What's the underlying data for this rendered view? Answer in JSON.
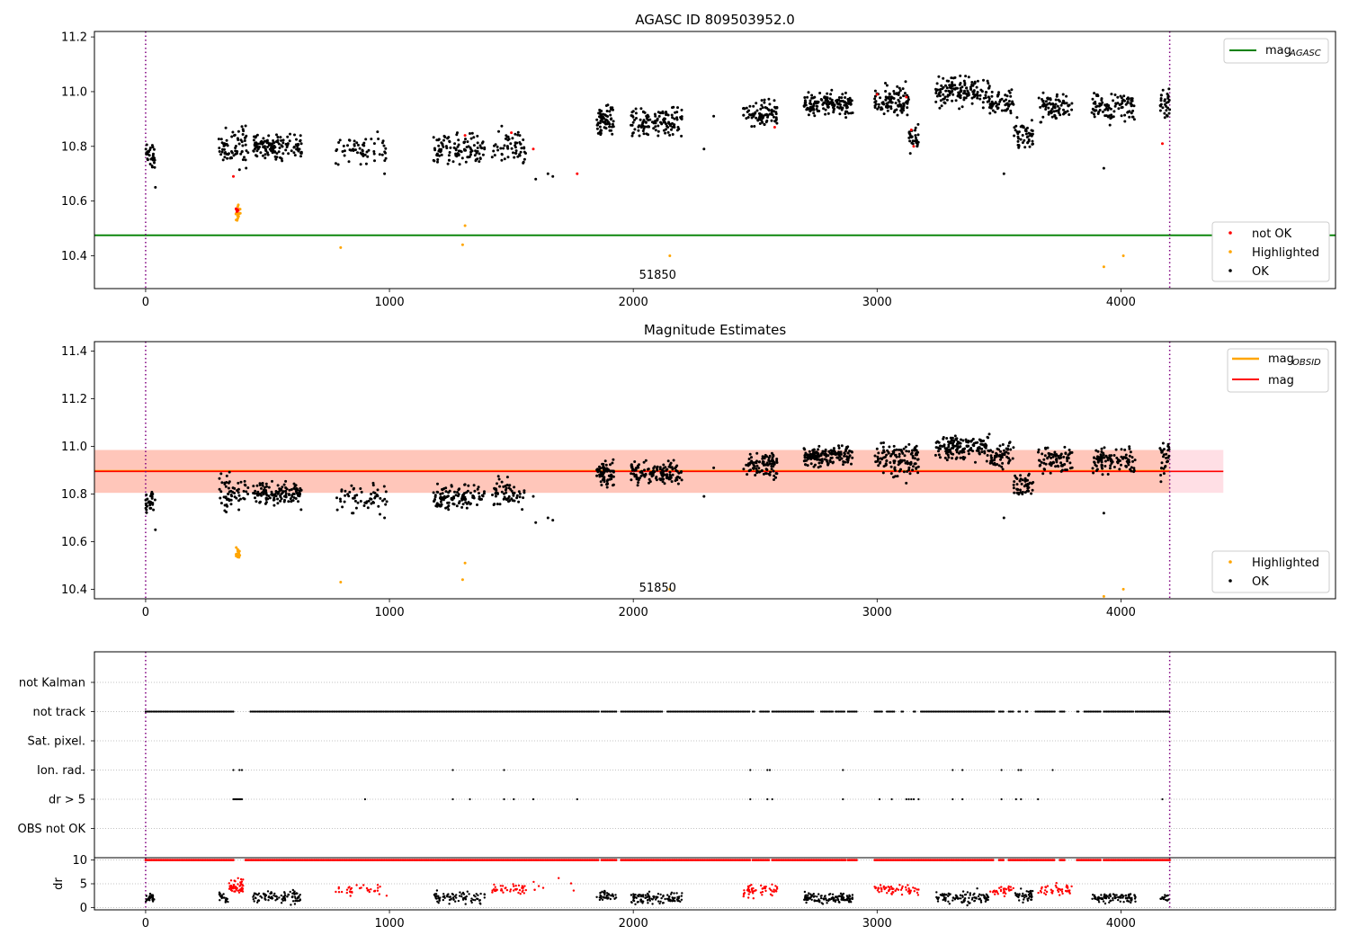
{
  "colors": {
    "ok": "#000000",
    "not_ok": "#ff0000",
    "highlighted": "#ffa500",
    "mag_agasc": "#008000",
    "mag_obsid": "#ffa500",
    "mag": "#ff0000",
    "vline": "#800080",
    "band_outer": "#ffc0cb",
    "band_inner": "#ffa07a",
    "grid": "#b0b0b0"
  },
  "chart_data": [
    {
      "type": "scatter",
      "title": "AGASC ID 809503952.0",
      "xlim": [
        -210,
        4880
      ],
      "ylim": [
        10.28,
        11.22
      ],
      "xticks": [
        0,
        1000,
        2000,
        3000,
        4000
      ],
      "yticks": [
        10.4,
        10.6,
        10.8,
        11.0,
        11.2
      ],
      "hlines": [
        {
          "name": "mag_AGASC",
          "y": 10.475,
          "color": "#008000"
        }
      ],
      "vlines": [
        0,
        4200
      ],
      "annotation": {
        "text": "51850",
        "x": 2100,
        "y": 10.33
      },
      "legend_lines": [
        {
          "label": "mag",
          "subscript": "AGASC",
          "color": "#008000"
        }
      ],
      "legend_points": [
        {
          "label": "not OK",
          "color": "#ff0000"
        },
        {
          "label": "Highlighted",
          "color": "#ffa500"
        },
        {
          "label": "OK",
          "color": "#000000"
        }
      ],
      "series": [
        {
          "name": "OK",
          "color": "#000000",
          "clusters": [
            [
              0,
              40,
              10.76,
              0.045,
              30
            ],
            [
              300,
              420,
              10.8,
              0.07,
              70
            ],
            [
              440,
              640,
              10.8,
              0.05,
              130
            ],
            [
              780,
              990,
              10.78,
              0.06,
              60
            ],
            [
              1180,
              1390,
              10.79,
              0.05,
              110
            ],
            [
              1420,
              1560,
              10.8,
              0.06,
              60
            ],
            [
              1850,
              1920,
              10.89,
              0.05,
              70
            ],
            [
              1990,
              2200,
              10.89,
              0.05,
              130
            ],
            [
              2450,
              2590,
              10.92,
              0.05,
              90
            ],
            [
              2700,
              2900,
              10.96,
              0.04,
              150
            ],
            [
              2990,
              3130,
              10.97,
              0.05,
              100
            ],
            [
              3130,
              3170,
              10.83,
              0.05,
              30
            ],
            [
              3240,
              3460,
              11.0,
              0.05,
              150
            ],
            [
              3460,
              3560,
              10.96,
              0.05,
              60
            ],
            [
              3560,
              3640,
              10.84,
              0.05,
              50
            ],
            [
              3660,
              3800,
              10.94,
              0.05,
              80
            ],
            [
              3880,
              4060,
              10.94,
              0.05,
              100
            ],
            [
              4160,
              4200,
              10.95,
              0.07,
              30
            ]
          ],
          "points": [
            [
              1600,
              10.68
            ],
            [
              1650,
              10.7
            ],
            [
              1670,
              10.69
            ],
            [
              2290,
              10.79
            ],
            [
              2330,
              10.91
            ],
            [
              3520,
              10.7
            ],
            [
              3930,
              10.72
            ],
            [
              40,
              10.65
            ],
            [
              980,
              10.7
            ]
          ]
        },
        {
          "name": "not OK",
          "color": "#ff0000",
          "clusters": [
            [
              370,
              385,
              10.57,
              0.03,
              12
            ]
          ],
          "points": [
            [
              360,
              10.69
            ],
            [
              1310,
              10.84
            ],
            [
              1590,
              10.79
            ],
            [
              1770,
              10.7
            ],
            [
              2580,
              10.87
            ],
            [
              3000,
              10.99
            ],
            [
              3120,
              10.98
            ],
            [
              3140,
              10.86
            ],
            [
              3150,
              10.8
            ],
            [
              4170,
              10.81
            ],
            [
              1500,
              10.85
            ]
          ]
        },
        {
          "name": "Highlighted",
          "color": "#ffa500",
          "clusters": [
            [
              370,
              390,
              10.55,
              0.03,
              14
            ]
          ],
          "points": [
            [
              800,
              10.43
            ],
            [
              1300,
              10.44
            ],
            [
              1310,
              10.51
            ],
            [
              2150,
              10.4
            ],
            [
              3930,
              10.36
            ],
            [
              4010,
              10.4
            ]
          ]
        }
      ]
    },
    {
      "type": "scatter",
      "title": "Magnitude Estimates",
      "xlim": [
        -210,
        4880
      ],
      "ylim": [
        10.36,
        11.44
      ],
      "xticks": [
        0,
        1000,
        2000,
        3000,
        4000
      ],
      "yticks": [
        10.4,
        10.6,
        10.8,
        11.0,
        11.2,
        11.4
      ],
      "vlines": [
        0,
        4200
      ],
      "bands": [
        {
          "y0": 10.805,
          "y1": 10.985,
          "x0": -210,
          "x1": 4420,
          "color": "#ffc0cb",
          "opacity": 0.5
        },
        {
          "y0": 10.805,
          "y1": 10.985,
          "x0": -210,
          "x1": 4200,
          "color": "#ffa07a",
          "opacity": 0.4
        }
      ],
      "hlines": [
        {
          "name": "mag_OBSID",
          "y": 10.897,
          "x0": -210,
          "x1": 4200,
          "color": "#ffa500",
          "width": 2
        },
        {
          "name": "mag",
          "y": 10.895,
          "x0": -210,
          "x1": 4420,
          "color": "#ff0000",
          "width": 1.6
        }
      ],
      "annotation": {
        "text": "51850",
        "x": 2100,
        "y": 10.405
      },
      "legend_lines": [
        {
          "label": "mag",
          "subscript": "OBSID",
          "color": "#ffa500"
        },
        {
          "label": "mag",
          "subscript": "",
          "color": "#ff0000"
        }
      ],
      "legend_points": [
        {
          "label": "Highlighted",
          "color": "#ffa500"
        },
        {
          "label": "OK",
          "color": "#000000"
        }
      ],
      "series": [
        {
          "name": "OK",
          "color": "#000000",
          "clusters": [
            [
              0,
              40,
              10.76,
              0.045,
              30
            ],
            [
              300,
              420,
              10.8,
              0.07,
              60
            ],
            [
              440,
              640,
              10.8,
              0.05,
              130
            ],
            [
              780,
              990,
              10.78,
              0.06,
              60
            ],
            [
              1180,
              1390,
              10.79,
              0.05,
              110
            ],
            [
              1420,
              1560,
              10.8,
              0.06,
              60
            ],
            [
              1850,
              1920,
              10.89,
              0.05,
              70
            ],
            [
              1990,
              2200,
              10.89,
              0.05,
              130
            ],
            [
              2450,
              2590,
              10.92,
              0.05,
              90
            ],
            [
              2700,
              2900,
              10.96,
              0.04,
              150
            ],
            [
              2990,
              3170,
              10.94,
              0.07,
              120
            ],
            [
              3240,
              3460,
              11.0,
              0.05,
              150
            ],
            [
              3460,
              3560,
              10.96,
              0.05,
              60
            ],
            [
              3560,
              3640,
              10.84,
              0.05,
              50
            ],
            [
              3660,
              3800,
              10.94,
              0.05,
              80
            ],
            [
              3880,
              4060,
              10.94,
              0.05,
              100
            ],
            [
              4160,
              4200,
              10.95,
              0.07,
              30
            ]
          ],
          "points": [
            [
              1600,
              10.68
            ],
            [
              1650,
              10.7
            ],
            [
              1670,
              10.69
            ],
            [
              2290,
              10.79
            ],
            [
              2330,
              10.91
            ],
            [
              3520,
              10.7
            ],
            [
              3930,
              10.72
            ],
            [
              40,
              10.65
            ],
            [
              980,
              10.7
            ],
            [
              1310,
              10.84
            ],
            [
              1590,
              10.79
            ],
            [
              3000,
              10.99
            ],
            [
              3120,
              10.98
            ]
          ]
        },
        {
          "name": "Highlighted",
          "color": "#ffa500",
          "clusters": [
            [
              370,
              390,
              10.55,
              0.03,
              14
            ]
          ],
          "points": [
            [
              800,
              10.43
            ],
            [
              1300,
              10.44
            ],
            [
              1310,
              10.51
            ],
            [
              2150,
              10.4
            ],
            [
              3930,
              10.37
            ],
            [
              4010,
              10.4
            ]
          ]
        }
      ]
    },
    {
      "type": "scatter",
      "title": "",
      "xlim": [
        -210,
        4880
      ],
      "vlines": [
        0,
        4200
      ],
      "categories": [
        "not Kalman",
        "not track",
        "Sat. pixel.",
        "Ion. rad.",
        "dr > 5",
        "OBS not OK"
      ],
      "flags": {
        "not track": {
          "segments": [
            [
              0,
              360
            ],
            [
              430,
              1860
            ],
            [
              1870,
              1930
            ],
            [
              1950,
              2120
            ],
            [
              2140,
              2480
            ],
            [
              2490,
              2500
            ],
            [
              2520,
              2560
            ],
            [
              2570,
              2740
            ],
            [
              2770,
              2820
            ],
            [
              2830,
              2870
            ],
            [
              2880,
              2920
            ],
            [
              2990,
              3020
            ],
            [
              3040,
              3070
            ],
            [
              3100,
              3110
            ],
            [
              3150,
              3160
            ],
            [
              3180,
              3480
            ],
            [
              3500,
              3520
            ],
            [
              3540,
              3560
            ],
            [
              3580,
              3590
            ],
            [
              3610,
              3620
            ],
            [
              3650,
              3730
            ],
            [
              3750,
              3770
            ],
            [
              3820,
              3830
            ],
            [
              3850,
              3920
            ],
            [
              3930,
              4050
            ],
            [
              4060,
              4200
            ]
          ]
        },
        "Ion. rad.": {
          "x": [
            360,
            385,
            395,
            1260,
            1470,
            2480,
            2550,
            2560,
            2860,
            3310,
            3350,
            3510,
            3580,
            3590,
            3720
          ]
        },
        "dr > 5": {
          "x": [
            360,
            365,
            370,
            375,
            380,
            385,
            390,
            395,
            900,
            1260,
            1330,
            1470,
            1510,
            1590,
            1770,
            2480,
            2550,
            2570,
            2860,
            3010,
            3060,
            3120,
            3130,
            3140,
            3150,
            3170,
            3310,
            3350,
            3510,
            3570,
            3590,
            3660,
            4170
          ]
        }
      }
    },
    {
      "type": "scatter",
      "title": "",
      "xlabel": "",
      "ylabel": "dr",
      "xlim": [
        -210,
        4880
      ],
      "ylim": [
        -0.5,
        10.5
      ],
      "xticks": [
        0,
        1000,
        2000,
        3000,
        4000
      ],
      "yticks": [
        0,
        5,
        10
      ],
      "vlines": [
        0,
        4200
      ],
      "saturated_value": 10,
      "saturated_segments": [
        [
          0,
          360
        ],
        [
          410,
          1860
        ],
        [
          1870,
          1930
        ],
        [
          1950,
          2480
        ],
        [
          2490,
          2560
        ],
        [
          2570,
          2870
        ],
        [
          2880,
          2920
        ],
        [
          2990,
          3480
        ],
        [
          3500,
          3520
        ],
        [
          3540,
          3730
        ],
        [
          3750,
          3770
        ],
        [
          3820,
          3920
        ],
        [
          3930,
          4200
        ]
      ],
      "series": [
        {
          "name": "ok",
          "color": "#000000",
          "clusters": [
            [
              0,
              40,
              2.0,
              0.6,
              30
            ],
            [
              300,
              340,
              2.0,
              0.9,
              20
            ],
            [
              440,
              640,
              2.2,
              1.0,
              100
            ],
            [
              1180,
              1390,
              2.0,
              1.0,
              80
            ],
            [
              1850,
              1930,
              2.5,
              0.8,
              40
            ],
            [
              1990,
              2200,
              2.0,
              1.0,
              110
            ],
            [
              2700,
              2900,
              2.0,
              0.9,
              120
            ],
            [
              3240,
              3460,
              2.2,
              1.0,
              100
            ],
            [
              3560,
              3640,
              2.5,
              1.0,
              40
            ],
            [
              3880,
              4060,
              2.0,
              0.8,
              90
            ],
            [
              4160,
              4200,
              2.0,
              0.7,
              15
            ]
          ]
        },
        {
          "name": "high",
          "color": "#ff0000",
          "clusters": [
            [
              340,
              400,
              4.5,
              1.2,
              50
            ],
            [
              780,
              990,
              3.8,
              0.9,
              35
            ],
            [
              1420,
              1560,
              3.9,
              0.9,
              40
            ],
            [
              2450,
              2590,
              3.5,
              0.9,
              50
            ],
            [
              2990,
              3170,
              3.8,
              1.0,
              60
            ],
            [
              3460,
              3560,
              3.6,
              0.9,
              30
            ],
            [
              3660,
              3800,
              3.8,
              0.9,
              40
            ],
            [
              1590,
              1770,
              4.5,
              1.5,
              8
            ]
          ]
        }
      ]
    }
  ]
}
